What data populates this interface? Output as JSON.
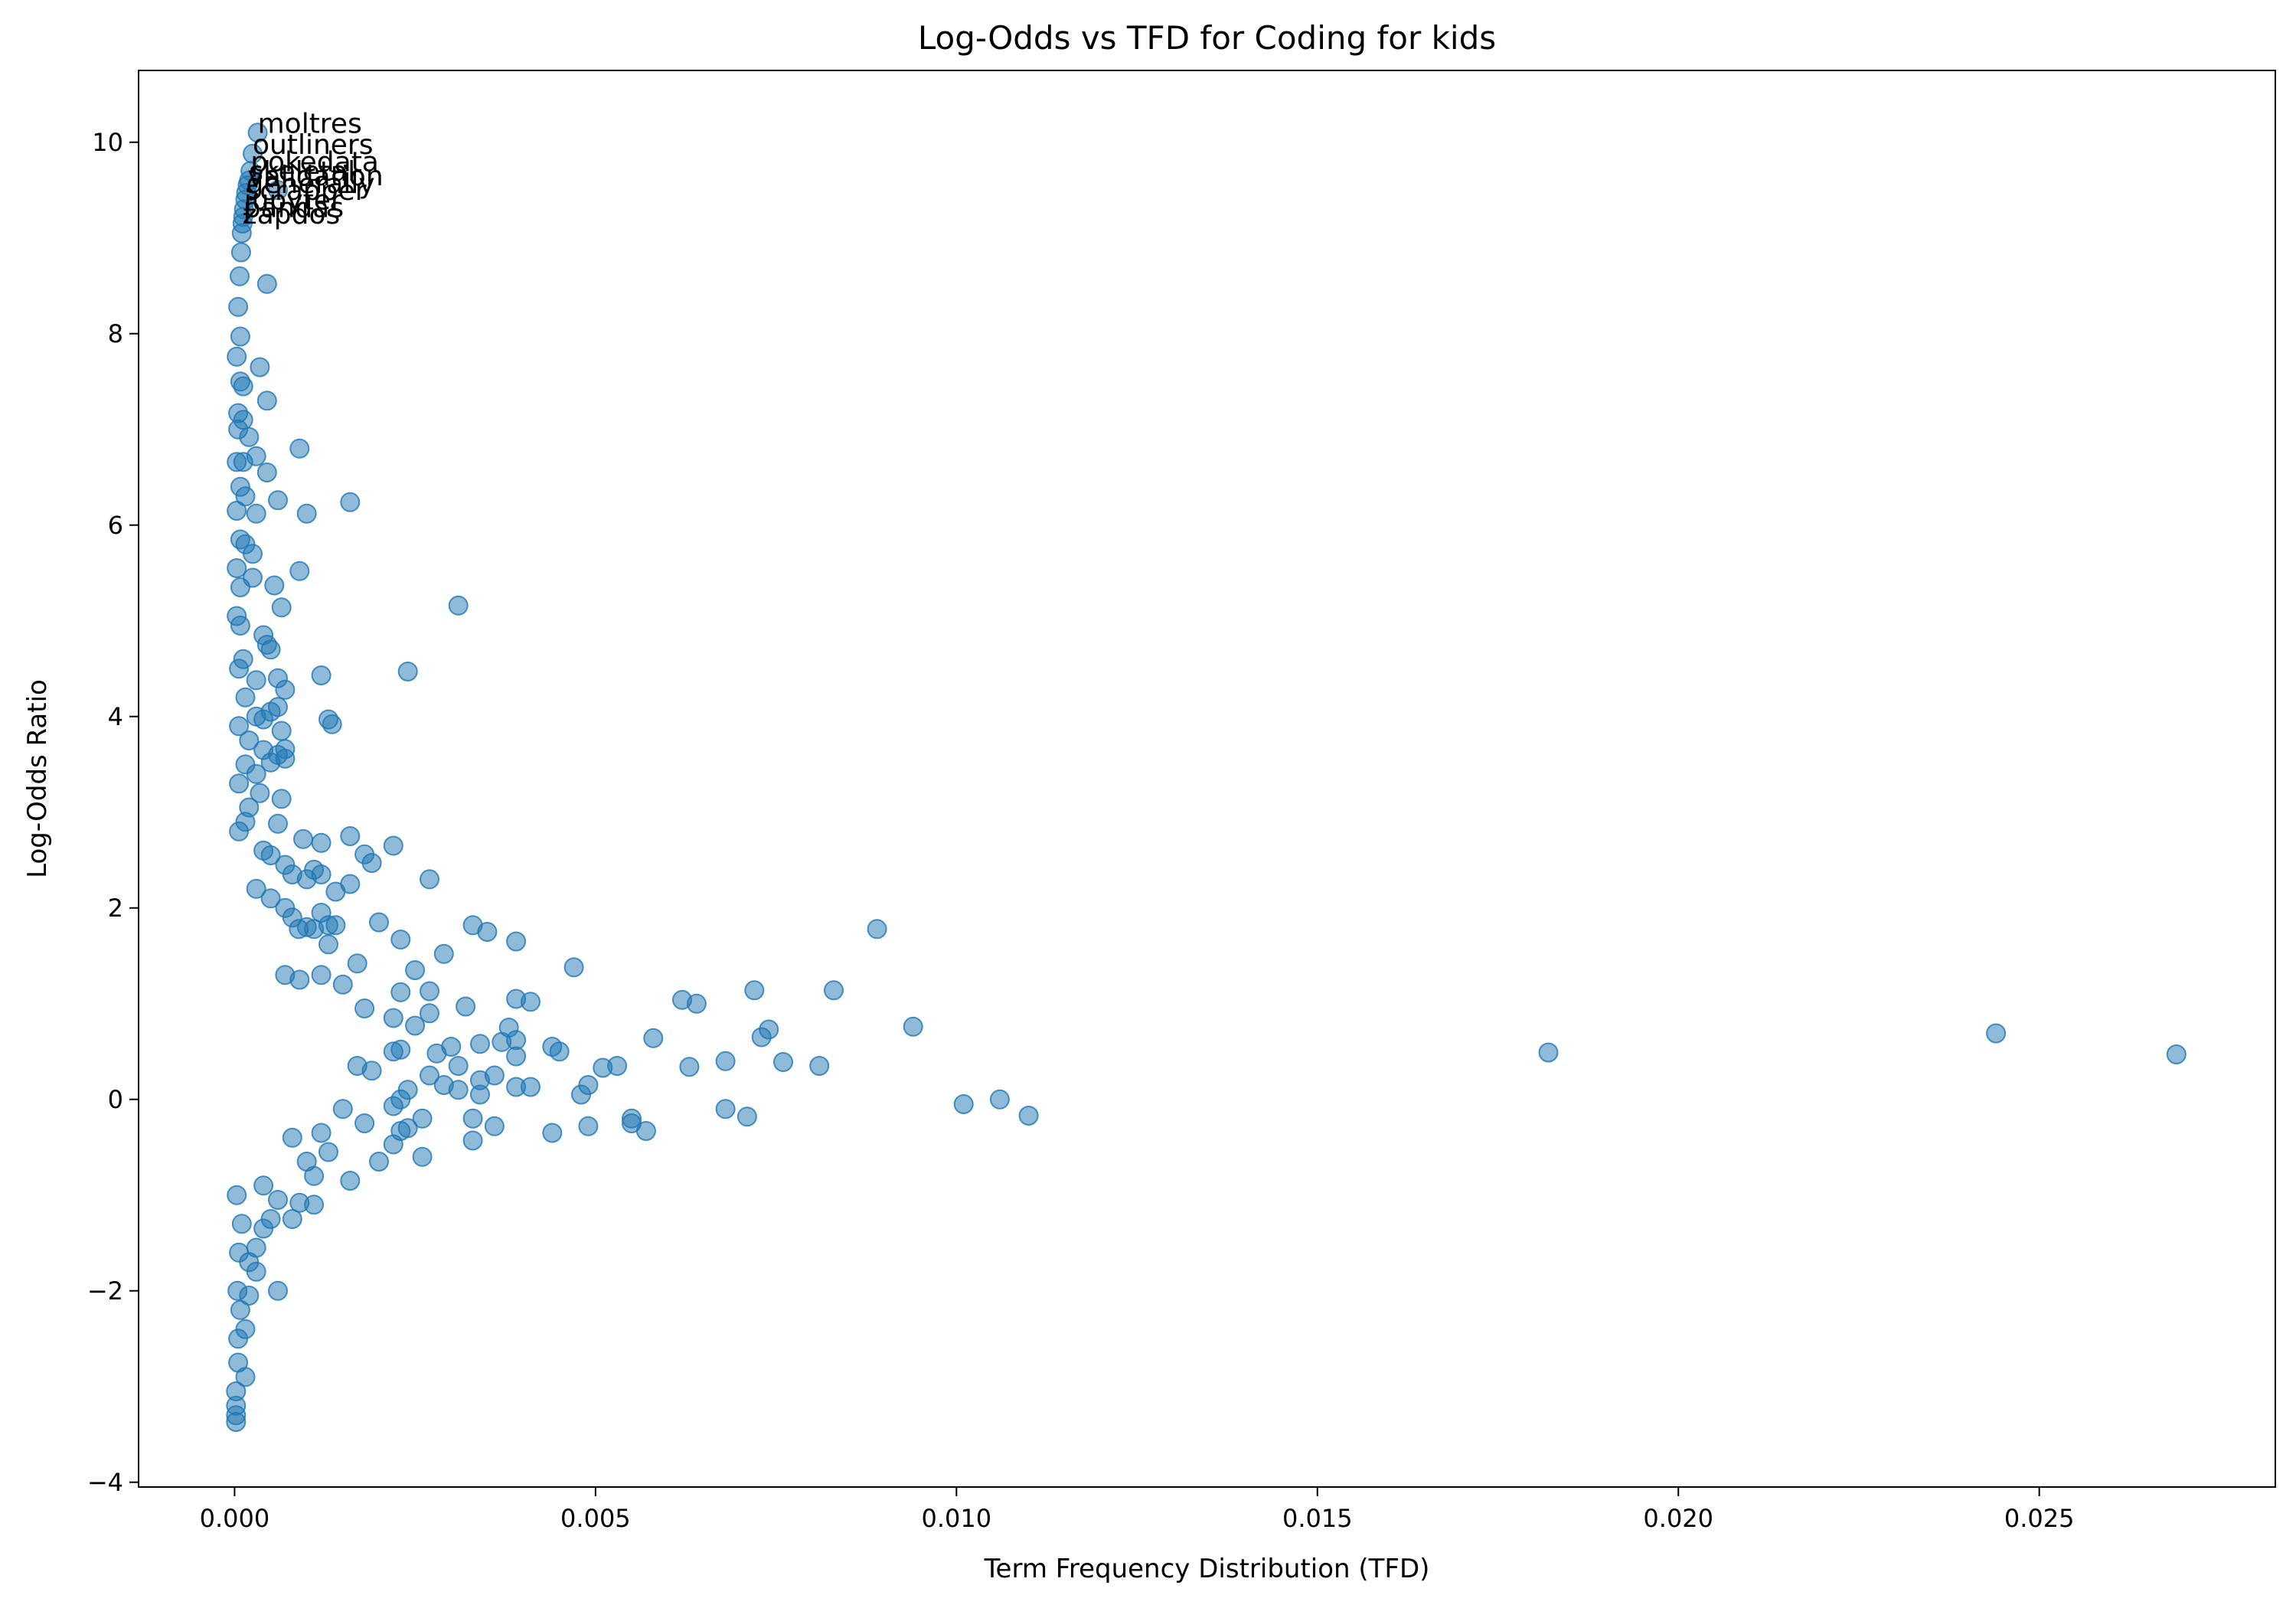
{
  "chart_data": {
    "type": "scatter",
    "title": "Log-Odds vs TFD for Coding for kids",
    "xlabel": "Term Frequency Distribution (TFD)",
    "ylabel": "Log-Odds Ratio",
    "xlim": [
      -0.00133,
      0.02827
    ],
    "ylim": [
      -4.05,
      10.75
    ],
    "xticks": [
      0.0,
      0.005,
      0.01,
      0.015,
      0.02,
      0.025
    ],
    "xtick_labels": [
      "0.000",
      "0.005",
      "0.010",
      "0.015",
      "0.020",
      "0.025"
    ],
    "yticks": [
      -4,
      -2,
      0,
      2,
      4,
      6,
      8,
      10
    ],
    "ytick_labels": [
      "−4",
      "−2",
      "0",
      "2",
      "4",
      "6",
      "8",
      "10"
    ],
    "grid": false,
    "marker_color": "#1f77b4",
    "marker_alpha": 0.5,
    "annotations": [
      {
        "text": "moltres",
        "x": 0.00032,
        "y": 10.1
      },
      {
        "text": "outliners",
        "x": 0.00025,
        "y": 9.88
      },
      {
        "text": "pokedata",
        "x": 0.00022,
        "y": 9.7
      },
      {
        "text": "skeletal",
        "x": 0.0002,
        "y": 9.6
      },
      {
        "text": "validation",
        "x": 0.00018,
        "y": 9.55
      },
      {
        "text": "generally",
        "x": 0.00016,
        "y": 9.47
      },
      {
        "text": "scrapper",
        "x": 0.00015,
        "y": 9.4
      },
      {
        "text": "jupyter",
        "x": 0.00013,
        "y": 9.3
      },
      {
        "text": "pandas",
        "x": 0.00012,
        "y": 9.22
      },
      {
        "text": "zapdos",
        "x": 0.00011,
        "y": 9.15
      }
    ],
    "points": [
      [
        0.00032,
        10.1
      ],
      [
        0.00025,
        9.88
      ],
      [
        0.00022,
        9.7
      ],
      [
        0.0002,
        9.6
      ],
      [
        0.00018,
        9.55
      ],
      [
        0.00016,
        9.47
      ],
      [
        0.00015,
        9.4
      ],
      [
        0.00013,
        9.3
      ],
      [
        0.00012,
        9.22
      ],
      [
        0.00011,
        9.15
      ],
      [
        0.0006,
        9.5
      ],
      [
        0.0001,
        9.05
      ],
      [
        9e-05,
        8.85
      ],
      [
        7e-05,
        8.6
      ],
      [
        5e-05,
        8.28
      ],
      [
        0.00045,
        8.52
      ],
      [
        8e-05,
        7.97
      ],
      [
        3e-05,
        7.76
      ],
      [
        0.00035,
        7.65
      ],
      [
        8e-05,
        7.5
      ],
      [
        0.00012,
        7.45
      ],
      [
        0.00045,
        7.3
      ],
      [
        5e-05,
        7.17
      ],
      [
        0.00012,
        7.1
      ],
      [
        5e-05,
        7.0
      ],
      [
        0.0002,
        6.92
      ],
      [
        0.0009,
        6.8
      ],
      [
        3e-05,
        6.66
      ],
      [
        0.00012,
        6.66
      ],
      [
        0.0003,
        6.72
      ],
      [
        0.00045,
        6.55
      ],
      [
        8e-05,
        6.4
      ],
      [
        0.00015,
        6.3
      ],
      [
        0.0006,
        6.26
      ],
      [
        3e-05,
        6.15
      ],
      [
        0.0003,
        6.12
      ],
      [
        0.001,
        6.12
      ],
      [
        0.0016,
        6.24
      ],
      [
        8e-05,
        5.85
      ],
      [
        0.00015,
        5.8
      ],
      [
        3e-05,
        5.55
      ],
      [
        0.00025,
        5.7
      ],
      [
        0.0009,
        5.52
      ],
      [
        8e-05,
        5.35
      ],
      [
        0.00025,
        5.45
      ],
      [
        0.00055,
        5.37
      ],
      [
        0.00065,
        5.14
      ],
      [
        0.0031,
        5.16
      ],
      [
        3e-05,
        5.05
      ],
      [
        8e-05,
        4.95
      ],
      [
        0.0004,
        4.85
      ],
      [
        0.00045,
        4.75
      ],
      [
        0.0005,
        4.7
      ],
      [
        0.00012,
        4.6
      ],
      [
        0.0024,
        4.47
      ],
      [
        0.0012,
        4.43
      ],
      [
        6e-05,
        4.5
      ],
      [
        0.0006,
        4.4
      ],
      [
        0.0003,
        4.38
      ],
      [
        0.0007,
        4.28
      ],
      [
        0.00015,
        4.2
      ],
      [
        0.0006,
        4.1
      ],
      [
        0.0005,
        4.05
      ],
      [
        0.0003,
        4.0
      ],
      [
        0.0004,
        3.97
      ],
      [
        0.0013,
        3.97
      ],
      [
        0.00135,
        3.92
      ],
      [
        6e-05,
        3.9
      ],
      [
        0.00065,
        3.85
      ],
      [
        0.0002,
        3.75
      ],
      [
        0.0007,
        3.66
      ],
      [
        0.0006,
        3.6
      ],
      [
        0.0007,
        3.56
      ],
      [
        0.0004,
        3.65
      ],
      [
        0.00015,
        3.5
      ],
      [
        0.0005,
        3.52
      ],
      [
        0.0003,
        3.4
      ],
      [
        6e-05,
        3.3
      ],
      [
        0.00035,
        3.2
      ],
      [
        0.00065,
        3.14
      ],
      [
        0.0002,
        3.05
      ],
      [
        0.00015,
        2.9
      ],
      [
        0.0006,
        2.88
      ],
      [
        6e-05,
        2.8
      ],
      [
        0.00095,
        2.72
      ],
      [
        0.0016,
        2.75
      ],
      [
        0.0012,
        2.68
      ],
      [
        0.0022,
        2.65
      ],
      [
        0.0004,
        2.6
      ],
      [
        0.0005,
        2.55
      ],
      [
        0.0018,
        2.56
      ],
      [
        0.0007,
        2.45
      ],
      [
        0.0019,
        2.47
      ],
      [
        0.0011,
        2.4
      ],
      [
        0.0008,
        2.35
      ],
      [
        0.0012,
        2.35
      ],
      [
        0.001,
        2.3
      ],
      [
        0.0027,
        2.3
      ],
      [
        0.0014,
        2.17
      ],
      [
        0.0016,
        2.25
      ],
      [
        0.0003,
        2.2
      ],
      [
        0.0005,
        2.1
      ],
      [
        0.0007,
        2.0
      ],
      [
        0.0012,
        1.95
      ],
      [
        0.0013,
        1.82
      ],
      [
        0.0008,
        1.9
      ],
      [
        0.001,
        1.8
      ],
      [
        0.0011,
        1.78
      ],
      [
        0.002,
        1.85
      ],
      [
        0.0014,
        1.82
      ],
      [
        0.0033,
        1.82
      ],
      [
        0.0035,
        1.75
      ],
      [
        0.0039,
        1.65
      ],
      [
        0.0023,
        1.67
      ],
      [
        0.0013,
        1.62
      ],
      [
        0.0029,
        1.52
      ],
      [
        0.00089,
        1.78
      ],
      [
        0.0089,
        1.78
      ],
      [
        0.0047,
        1.38
      ],
      [
        0.0017,
        1.42
      ],
      [
        0.0025,
        1.35
      ],
      [
        0.0012,
        1.3
      ],
      [
        0.0009,
        1.25
      ],
      [
        0.0015,
        1.2
      ],
      [
        0.0007,
        1.3
      ],
      [
        0.0023,
        1.12
      ],
      [
        0.0027,
        1.13
      ],
      [
        0.0072,
        1.14
      ],
      [
        0.0083,
        1.14
      ],
      [
        0.0062,
        1.04
      ],
      [
        0.0064,
        1.0
      ],
      [
        0.0041,
        1.02
      ],
      [
        0.0039,
        1.05
      ],
      [
        0.0032,
        0.97
      ],
      [
        0.0018,
        0.95
      ],
      [
        0.0027,
        0.9
      ],
      [
        0.0022,
        0.85
      ],
      [
        0.0038,
        0.75
      ],
      [
        0.0094,
        0.76
      ],
      [
        0.0074,
        0.73
      ],
      [
        0.0073,
        0.65
      ],
      [
        0.0058,
        0.64
      ],
      [
        0.0037,
        0.6
      ],
      [
        0.0039,
        0.62
      ],
      [
        0.0044,
        0.55
      ],
      [
        0.0045,
        0.5
      ],
      [
        0.0034,
        0.58
      ],
      [
        0.003,
        0.55
      ],
      [
        0.0028,
        0.48
      ],
      [
        0.0039,
        0.45
      ],
      [
        0.0031,
        0.35
      ],
      [
        0.0051,
        0.33
      ],
      [
        0.0053,
        0.35
      ],
      [
        0.0063,
        0.34
      ],
      [
        0.0068,
        0.4
      ],
      [
        0.0076,
        0.39
      ],
      [
        0.0081,
        0.35
      ],
      [
        0.0182,
        0.49
      ],
      [
        0.0244,
        0.69
      ],
      [
        0.0269,
        0.47
      ],
      [
        0.0025,
        0.77
      ],
      [
        0.0022,
        0.5
      ],
      [
        0.0023,
        0.52
      ],
      [
        0.0017,
        0.35
      ],
      [
        0.0019,
        0.3
      ],
      [
        0.0036,
        0.25
      ],
      [
        0.0034,
        0.2
      ],
      [
        0.0027,
        0.25
      ],
      [
        0.0029,
        0.15
      ],
      [
        0.0031,
        0.1
      ],
      [
        0.0041,
        0.13
      ],
      [
        0.0039,
        0.13
      ],
      [
        0.0049,
        0.15
      ],
      [
        0.0048,
        0.05
      ],
      [
        0.0034,
        0.05
      ],
      [
        0.0024,
        0.1
      ],
      [
        0.0023,
        0.0
      ],
      [
        0.0022,
        -0.07
      ],
      [
        0.0026,
        -0.2
      ],
      [
        0.0033,
        -0.2
      ],
      [
        0.0036,
        -0.28
      ],
      [
        0.0024,
        -0.3
      ],
      [
        0.0023,
        -0.33
      ],
      [
        0.0018,
        -0.25
      ],
      [
        0.0015,
        -0.1
      ],
      [
        0.0044,
        -0.35
      ],
      [
        0.0049,
        -0.28
      ],
      [
        0.0055,
        -0.2
      ],
      [
        0.0055,
        -0.25
      ],
      [
        0.0057,
        -0.33
      ],
      [
        0.0068,
        -0.1
      ],
      [
        0.0071,
        -0.18
      ],
      [
        0.0101,
        -0.05
      ],
      [
        0.0106,
        0.0
      ],
      [
        0.011,
        -0.17
      ],
      [
        0.0033,
        -0.43
      ],
      [
        0.0022,
        -0.47
      ],
      [
        0.0026,
        -0.6
      ],
      [
        0.002,
        -0.65
      ],
      [
        0.0016,
        -0.85
      ],
      [
        0.0013,
        -0.55
      ],
      [
        0.0012,
        -0.35
      ],
      [
        0.0011,
        -0.8
      ],
      [
        0.001,
        -0.65
      ],
      [
        0.0008,
        -0.4
      ],
      [
        0.0011,
        -1.1
      ],
      [
        0.0009,
        -1.08
      ],
      [
        0.0008,
        -1.25
      ],
      [
        0.0006,
        -1.05
      ],
      [
        0.0004,
        -0.9
      ],
      [
        0.0005,
        -1.25
      ],
      [
        0.0004,
        -1.35
      ],
      [
        0.0003,
        -1.55
      ],
      [
        0.0006,
        -2.0
      ],
      [
        0.0003,
        -1.8
      ],
      [
        0.0002,
        -1.7
      ],
      [
        0.0002,
        -2.05
      ],
      [
        0.00015,
        -2.4
      ],
      [
        0.00015,
        -2.9
      ],
      [
        5e-05,
        -2.75
      ],
      [
        2e-05,
        -3.05
      ],
      [
        2e-05,
        -3.2
      ],
      [
        2e-05,
        -3.3
      ],
      [
        2e-05,
        -3.37
      ],
      [
        5e-05,
        -2.5
      ],
      [
        8e-05,
        -2.2
      ],
      [
        4e-05,
        -2.0
      ],
      [
        6e-05,
        -1.6
      ],
      [
        0.0001,
        -1.3
      ],
      [
        3e-05,
        -1.0
      ]
    ]
  }
}
